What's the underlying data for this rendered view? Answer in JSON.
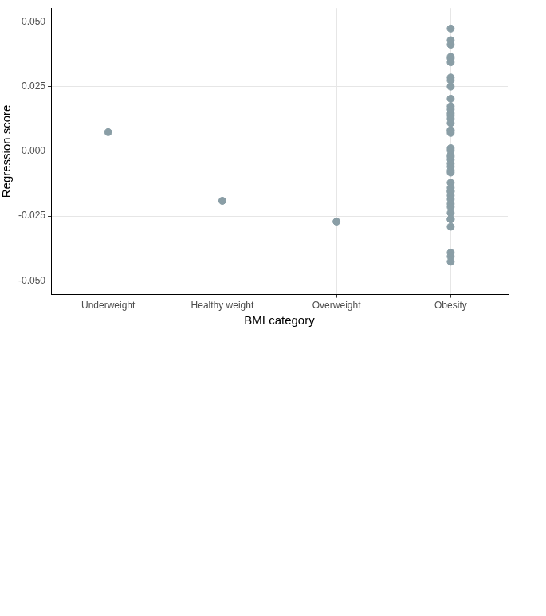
{
  "chart_data": {
    "type": "scatter",
    "x_label": "BMI category",
    "y_label": "Regression score",
    "categories": [
      "Underweight",
      "Healthy weight",
      "Overweight",
      "Obesity"
    ],
    "values": [
      [
        0.0074,
        -0.0191,
        -0.0271,
        -0.0406
      ],
      [
        0.0203,
        0.0147,
        0.0126,
        0.0109,
        0.0082,
        0.0071,
        0.0012,
        -0.0032,
        -0.0047,
        -0.0059,
        -0.0074,
        -0.0082,
        -0.0121,
        -0.0141,
        -0.0156,
        -0.0171,
        -0.0185,
        -0.0203,
        -0.0215,
        -0.0262,
        -0.0426
      ],
      [
        0.0359,
        0.0285,
        0.025,
        0.0162,
        0.0079,
        0.0003,
        -0.0015,
        -0.0021,
        -0.0153,
        -0.0238,
        -0.0262,
        -0.0291,
        -0.0391
      ],
      [
        0.0474,
        0.0429,
        0.0412,
        0.0365,
        0.0344,
        0.0274,
        0.0174,
        0.0138
      ]
    ],
    "color": "#8a9ea6",
    "marker": "circle",
    "ylim": [
      -0.0553,
      0.0553
    ],
    "yticks": [
      {
        "value": -0.05,
        "label": "-0.050"
      },
      {
        "value": -0.025,
        "label": "-0.025"
      },
      {
        "value": 0,
        "label": "0.000"
      },
      {
        "value": 0.025,
        "label": "0.025"
      },
      {
        "value": 0.05,
        "label": "0.050"
      }
    ],
    "grid": true
  }
}
